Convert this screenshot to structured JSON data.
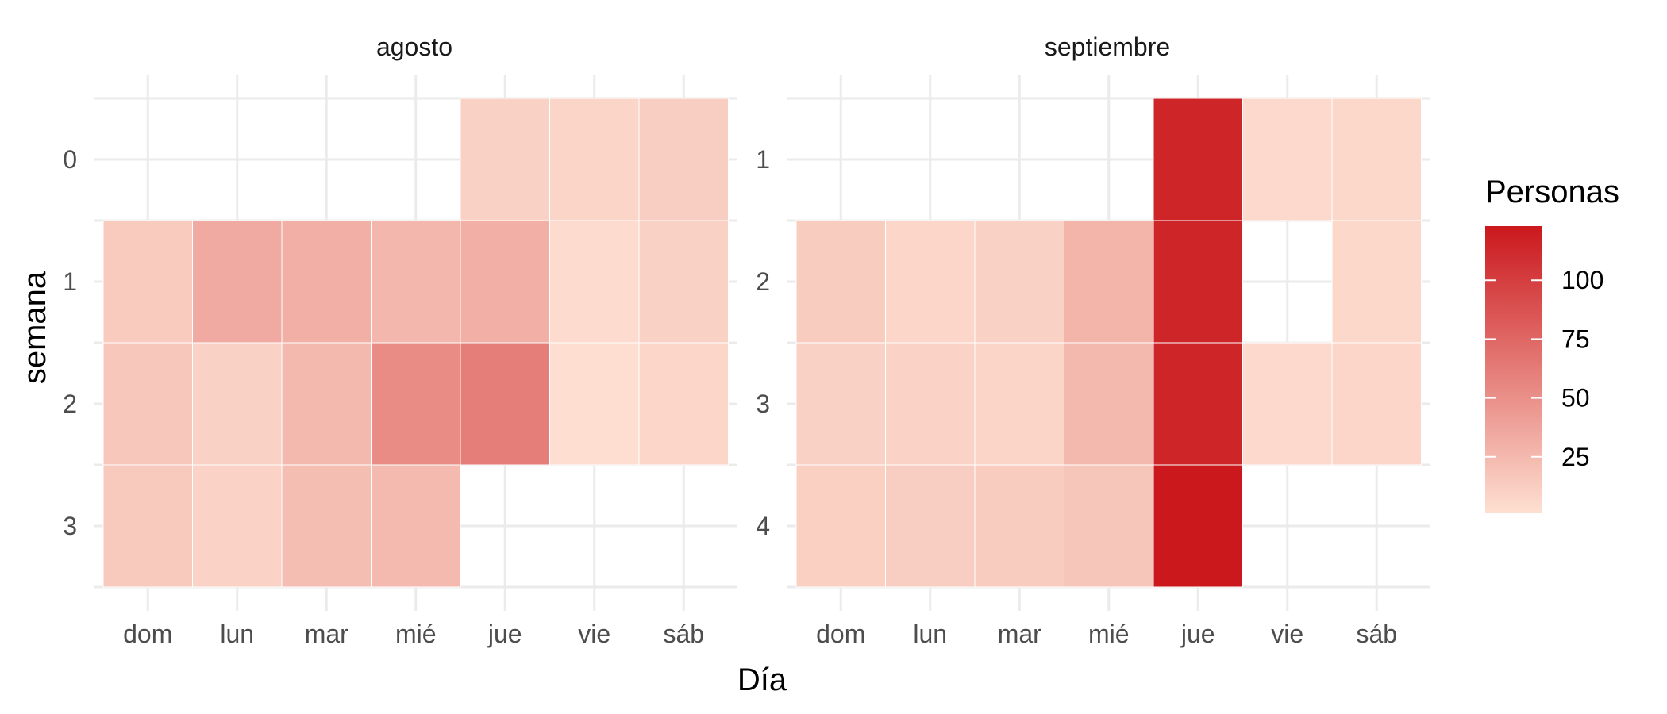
{
  "chart_data": {
    "type": "heatmap",
    "xlabel": "Día",
    "ylabel": "semana",
    "days": [
      "dom",
      "lun",
      "mar",
      "mié",
      "jue",
      "vie",
      "sáb"
    ],
    "legend": {
      "title": "Personas",
      "breaks": [
        25,
        50,
        75,
        100
      ],
      "range": [
        1,
        123
      ],
      "low_color": "#fee0d2",
      "high_color": "#cb181d",
      "placement": "right"
    },
    "panels": [
      {
        "title": "agosto",
        "weeks": [
          0,
          1,
          2,
          3
        ],
        "cells": [
          [
            null,
            null,
            null,
            null,
            10,
            8,
            12
          ],
          [
            14,
            34,
            31,
            26,
            31,
            4,
            10
          ],
          [
            16,
            10,
            25,
            52,
            61,
            2,
            7
          ],
          [
            15,
            9,
            22,
            24,
            null,
            null,
            null
          ]
        ]
      },
      {
        "title": "septiembre",
        "weeks": [
          1,
          2,
          3,
          4
        ],
        "cells": [
          [
            null,
            null,
            null,
            null,
            115,
            5,
            6
          ],
          [
            13,
            7,
            10,
            28,
            115,
            null,
            6
          ],
          [
            10,
            9,
            8,
            25,
            115,
            5,
            7
          ],
          [
            11,
            12,
            13,
            17,
            123,
            null,
            null
          ]
        ]
      }
    ]
  }
}
